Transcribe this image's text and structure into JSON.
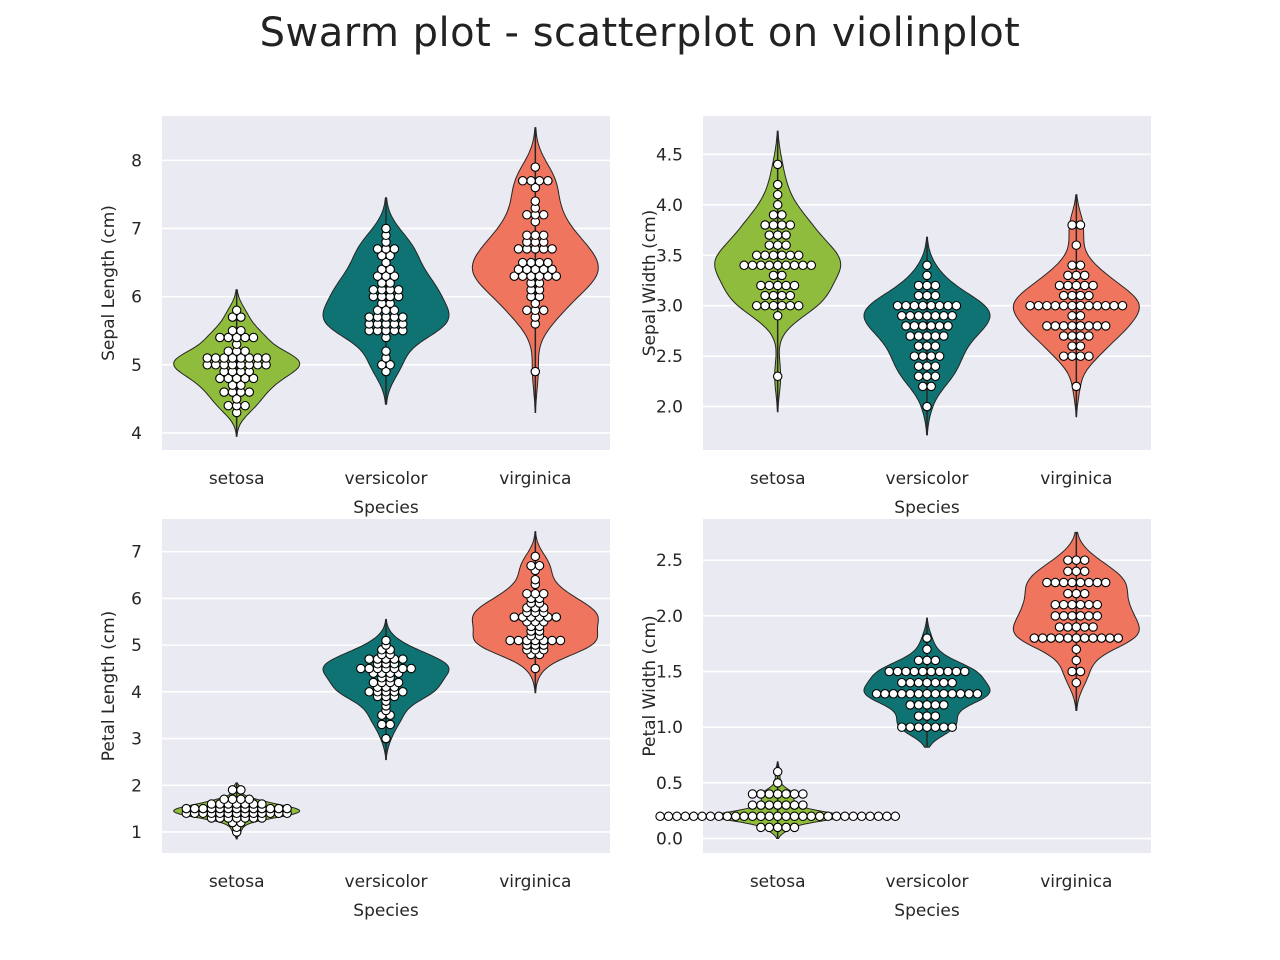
{
  "title": "Swarm plot - scatterplot on violinplot",
  "colors": {
    "setosa": "#8fbc3c",
    "versicolor": "#0f7373",
    "virginica": "#ef755f",
    "background": "#eaeaf2",
    "grid": "#ffffff",
    "outline": "#262626"
  },
  "chart_data": [
    {
      "type": "violin",
      "xlabel": "Species",
      "ylabel": "Sepal Length (cm)",
      "categories": [
        "setosa",
        "versicolor",
        "virginica"
      ],
      "ylim": [
        3.75,
        8.65
      ],
      "yticks": [
        4,
        5,
        6,
        7,
        8
      ],
      "ytick_labels": [
        "4",
        "5",
        "6",
        "7",
        "8"
      ],
      "violin_range": [
        [
          3.95,
          6.1
        ],
        [
          4.42,
          7.45
        ],
        [
          4.3,
          8.48
        ]
      ],
      "series": [
        {
          "name": "setosa",
          "values": [
            {
              "v": 4.3,
              "c": 1
            },
            {
              "v": 4.4,
              "c": 3
            },
            {
              "v": 4.5,
              "c": 1
            },
            {
              "v": 4.6,
              "c": 4
            },
            {
              "v": 4.7,
              "c": 2
            },
            {
              "v": 4.8,
              "c": 5
            },
            {
              "v": 4.9,
              "c": 4
            },
            {
              "v": 5.0,
              "c": 8
            },
            {
              "v": 5.1,
              "c": 8
            },
            {
              "v": 5.2,
              "c": 3
            },
            {
              "v": 5.3,
              "c": 1
            },
            {
              "v": 5.4,
              "c": 5
            },
            {
              "v": 5.5,
              "c": 2
            },
            {
              "v": 5.7,
              "c": 2
            },
            {
              "v": 5.8,
              "c": 1
            }
          ]
        },
        {
          "name": "versicolor",
          "values": [
            {
              "v": 4.9,
              "c": 1
            },
            {
              "v": 5.0,
              "c": 2
            },
            {
              "v": 5.1,
              "c": 1
            },
            {
              "v": 5.2,
              "c": 1
            },
            {
              "v": 5.4,
              "c": 1
            },
            {
              "v": 5.5,
              "c": 5
            },
            {
              "v": 5.6,
              "c": 5
            },
            {
              "v": 5.7,
              "c": 5
            },
            {
              "v": 5.8,
              "c": 3
            },
            {
              "v": 5.9,
              "c": 2
            },
            {
              "v": 6.0,
              "c": 4
            },
            {
              "v": 6.1,
              "c": 4
            },
            {
              "v": 6.2,
              "c": 2
            },
            {
              "v": 6.3,
              "c": 3
            },
            {
              "v": 6.4,
              "c": 2
            },
            {
              "v": 6.5,
              "c": 1
            },
            {
              "v": 6.6,
              "c": 2
            },
            {
              "v": 6.7,
              "c": 3
            },
            {
              "v": 6.8,
              "c": 1
            },
            {
              "v": 6.9,
              "c": 1
            },
            {
              "v": 7.0,
              "c": 1
            }
          ]
        },
        {
          "name": "virginica",
          "values": [
            {
              "v": 4.9,
              "c": 1
            },
            {
              "v": 5.6,
              "c": 1
            },
            {
              "v": 5.7,
              "c": 1
            },
            {
              "v": 5.8,
              "c": 3
            },
            {
              "v": 5.9,
              "c": 1
            },
            {
              "v": 6.0,
              "c": 2
            },
            {
              "v": 6.1,
              "c": 2
            },
            {
              "v": 6.2,
              "c": 2
            },
            {
              "v": 6.3,
              "c": 6
            },
            {
              "v": 6.4,
              "c": 5
            },
            {
              "v": 6.5,
              "c": 4
            },
            {
              "v": 6.7,
              "c": 5
            },
            {
              "v": 6.8,
              "c": 3
            },
            {
              "v": 6.9,
              "c": 3
            },
            {
              "v": 7.0,
              "c": 0
            },
            {
              "v": 7.1,
              "c": 1
            },
            {
              "v": 7.2,
              "c": 3
            },
            {
              "v": 7.3,
              "c": 1
            },
            {
              "v": 7.4,
              "c": 1
            },
            {
              "v": 7.6,
              "c": 1
            },
            {
              "v": 7.7,
              "c": 4
            },
            {
              "v": 7.9,
              "c": 1
            }
          ]
        }
      ]
    },
    {
      "type": "violin",
      "xlabel": "Species",
      "ylabel": "Sepal Width (cm)",
      "categories": [
        "setosa",
        "versicolor",
        "virginica"
      ],
      "ylim": [
        1.57,
        4.88
      ],
      "yticks": [
        2.0,
        2.5,
        3.0,
        3.5,
        4.0,
        4.5
      ],
      "ytick_labels": [
        "2.0",
        "2.5",
        "3.0",
        "3.5",
        "4.0",
        "4.5"
      ],
      "violin_range": [
        [
          1.95,
          4.73
        ],
        [
          1.72,
          3.68
        ],
        [
          1.9,
          4.1
        ]
      ],
      "series": [
        {
          "name": "setosa",
          "values": [
            {
              "v": 2.3,
              "c": 1
            },
            {
              "v": 2.9,
              "c": 1
            },
            {
              "v": 3.0,
              "c": 6
            },
            {
              "v": 3.1,
              "c": 4
            },
            {
              "v": 3.2,
              "c": 5
            },
            {
              "v": 3.3,
              "c": 2
            },
            {
              "v": 3.4,
              "c": 9
            },
            {
              "v": 3.5,
              "c": 6
            },
            {
              "v": 3.6,
              "c": 3
            },
            {
              "v": 3.7,
              "c": 3
            },
            {
              "v": 3.8,
              "c": 4
            },
            {
              "v": 3.9,
              "c": 2
            },
            {
              "v": 4.0,
              "c": 1
            },
            {
              "v": 4.1,
              "c": 1
            },
            {
              "v": 4.2,
              "c": 1
            },
            {
              "v": 4.4,
              "c": 1
            }
          ]
        },
        {
          "name": "versicolor",
          "values": [
            {
              "v": 2.0,
              "c": 1
            },
            {
              "v": 2.2,
              "c": 2
            },
            {
              "v": 2.3,
              "c": 3
            },
            {
              "v": 2.4,
              "c": 3
            },
            {
              "v": 2.5,
              "c": 4
            },
            {
              "v": 2.6,
              "c": 3
            },
            {
              "v": 2.7,
              "c": 5
            },
            {
              "v": 2.8,
              "c": 6
            },
            {
              "v": 2.9,
              "c": 7
            },
            {
              "v": 3.0,
              "c": 8
            },
            {
              "v": 3.1,
              "c": 3
            },
            {
              "v": 3.2,
              "c": 3
            },
            {
              "v": 3.3,
              "c": 1
            },
            {
              "v": 3.4,
              "c": 1
            }
          ]
        },
        {
          "name": "virginica",
          "values": [
            {
              "v": 2.2,
              "c": 1
            },
            {
              "v": 2.5,
              "c": 4
            },
            {
              "v": 2.6,
              "c": 2
            },
            {
              "v": 2.7,
              "c": 4
            },
            {
              "v": 2.8,
              "c": 8
            },
            {
              "v": 2.9,
              "c": 2
            },
            {
              "v": 3.0,
              "c": 12
            },
            {
              "v": 3.1,
              "c": 4
            },
            {
              "v": 3.2,
              "c": 5
            },
            {
              "v": 3.3,
              "c": 3
            },
            {
              "v": 3.4,
              "c": 2
            },
            {
              "v": 3.6,
              "c": 1
            },
            {
              "v": 3.8,
              "c": 2
            }
          ]
        }
      ]
    },
    {
      "type": "violin",
      "xlabel": "Species",
      "ylabel": "Petal Length (cm)",
      "categories": [
        "setosa",
        "versicolor",
        "virginica"
      ],
      "ylim": [
        0.55,
        7.7
      ],
      "yticks": [
        1,
        2,
        3,
        4,
        5,
        6,
        7
      ],
      "ytick_labels": [
        "1",
        "2",
        "3",
        "4",
        "5",
        "6",
        "7"
      ],
      "violin_range": [
        [
          0.85,
          2.05
        ],
        [
          2.55,
          5.55
        ],
        [
          3.98,
          7.43
        ]
      ],
      "series": [
        {
          "name": "setosa",
          "values": [
            {
              "v": 1.0,
              "c": 1
            },
            {
              "v": 1.1,
              "c": 1
            },
            {
              "v": 1.2,
              "c": 2
            },
            {
              "v": 1.3,
              "c": 7
            },
            {
              "v": 1.4,
              "c": 13
            },
            {
              "v": 1.5,
              "c": 13
            },
            {
              "v": 1.6,
              "c": 7
            },
            {
              "v": 1.7,
              "c": 4
            },
            {
              "v": 1.9,
              "c": 2
            }
          ]
        },
        {
          "name": "versicolor",
          "values": [
            {
              "v": 3.0,
              "c": 1
            },
            {
              "v": 3.3,
              "c": 2
            },
            {
              "v": 3.5,
              "c": 2
            },
            {
              "v": 3.6,
              "c": 1
            },
            {
              "v": 3.7,
              "c": 1
            },
            {
              "v": 3.8,
              "c": 1
            },
            {
              "v": 3.9,
              "c": 3
            },
            {
              "v": 4.0,
              "c": 5
            },
            {
              "v": 4.1,
              "c": 3
            },
            {
              "v": 4.2,
              "c": 4
            },
            {
              "v": 4.3,
              "c": 2
            },
            {
              "v": 4.4,
              "c": 4
            },
            {
              "v": 4.5,
              "c": 7
            },
            {
              "v": 4.6,
              "c": 3
            },
            {
              "v": 4.7,
              "c": 5
            },
            {
              "v": 4.8,
              "c": 2
            },
            {
              "v": 4.9,
              "c": 2
            },
            {
              "v": 5.0,
              "c": 1
            },
            {
              "v": 5.1,
              "c": 1
            }
          ]
        },
        {
          "name": "virginica",
          "values": [
            {
              "v": 4.5,
              "c": 1
            },
            {
              "v": 4.8,
              "c": 2
            },
            {
              "v": 4.9,
              "c": 3
            },
            {
              "v": 5.0,
              "c": 3
            },
            {
              "v": 5.1,
              "c": 7
            },
            {
              "v": 5.2,
              "c": 2
            },
            {
              "v": 5.3,
              "c": 2
            },
            {
              "v": 5.4,
              "c": 2
            },
            {
              "v": 5.5,
              "c": 3
            },
            {
              "v": 5.6,
              "c": 6
            },
            {
              "v": 5.7,
              "c": 3
            },
            {
              "v": 5.8,
              "c": 3
            },
            {
              "v": 5.9,
              "c": 2
            },
            {
              "v": 6.0,
              "c": 2
            },
            {
              "v": 6.1,
              "c": 3
            },
            {
              "v": 6.3,
              "c": 1
            },
            {
              "v": 6.4,
              "c": 1
            },
            {
              "v": 6.6,
              "c": 1
            },
            {
              "v": 6.7,
              "c": 2
            },
            {
              "v": 6.9,
              "c": 1
            }
          ]
        }
      ]
    },
    {
      "type": "violin",
      "xlabel": "Species",
      "ylabel": "Petal Width (cm)",
      "categories": [
        "setosa",
        "versicolor",
        "virginica"
      ],
      "ylim": [
        -0.13,
        2.87
      ],
      "yticks": [
        0.0,
        0.5,
        1.0,
        1.5,
        2.0,
        2.5
      ],
      "ytick_labels": [
        "0.0",
        "0.5",
        "1.0",
        "1.5",
        "2.0",
        "2.5"
      ],
      "violin_range": [
        [
          0.0,
          0.69
        ],
        [
          0.82,
          1.98
        ],
        [
          1.15,
          2.75
        ]
      ],
      "series": [
        {
          "name": "setosa",
          "values": [
            {
              "v": 0.1,
              "c": 5
            },
            {
              "v": 0.2,
              "c": 29
            },
            {
              "v": 0.3,
              "c": 7
            },
            {
              "v": 0.4,
              "c": 7
            },
            {
              "v": 0.5,
              "c": 1
            },
            {
              "v": 0.6,
              "c": 1
            }
          ]
        },
        {
          "name": "versicolor",
          "values": [
            {
              "v": 1.0,
              "c": 7
            },
            {
              "v": 1.1,
              "c": 3
            },
            {
              "v": 1.2,
              "c": 5
            },
            {
              "v": 1.3,
              "c": 13
            },
            {
              "v": 1.4,
              "c": 7
            },
            {
              "v": 1.5,
              "c": 10
            },
            {
              "v": 1.6,
              "c": 3
            },
            {
              "v": 1.7,
              "c": 1
            },
            {
              "v": 1.8,
              "c": 1
            }
          ]
        },
        {
          "name": "virginica",
          "values": [
            {
              "v": 1.4,
              "c": 1
            },
            {
              "v": 1.5,
              "c": 2
            },
            {
              "v": 1.6,
              "c": 1
            },
            {
              "v": 1.7,
              "c": 1
            },
            {
              "v": 1.8,
              "c": 11
            },
            {
              "v": 1.9,
              "c": 5
            },
            {
              "v": 2.0,
              "c": 6
            },
            {
              "v": 2.1,
              "c": 6
            },
            {
              "v": 2.2,
              "c": 3
            },
            {
              "v": 2.3,
              "c": 8
            },
            {
              "v": 2.4,
              "c": 3
            },
            {
              "v": 2.5,
              "c": 3
            }
          ]
        }
      ]
    }
  ]
}
